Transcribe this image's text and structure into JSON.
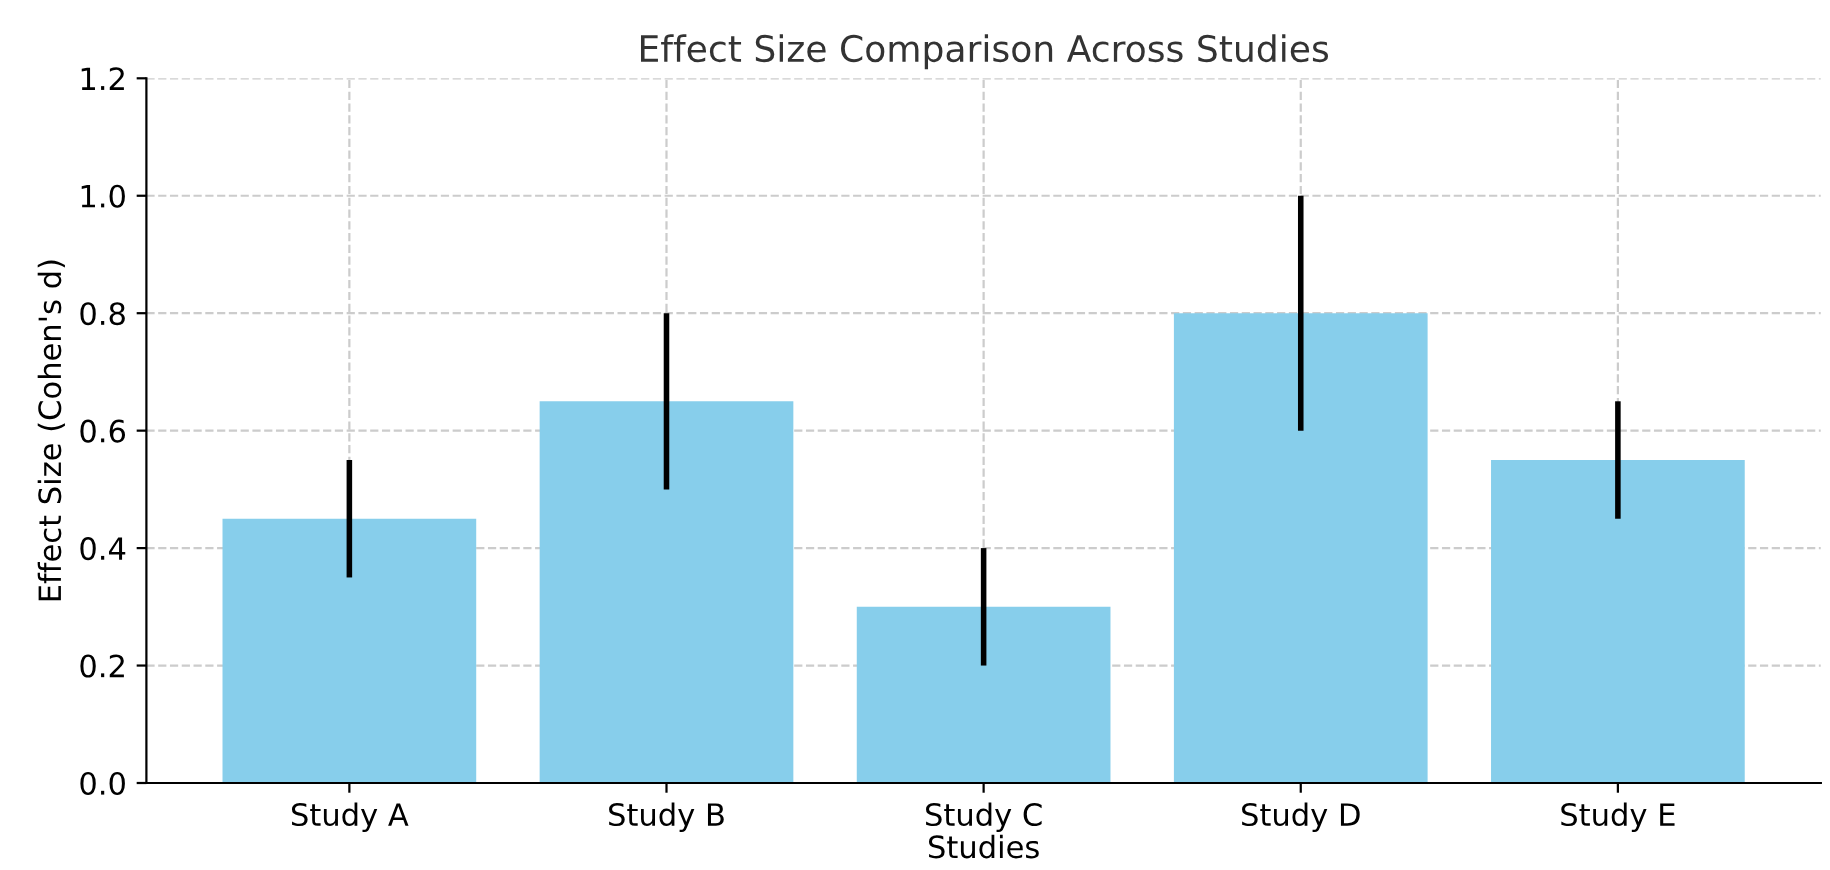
{
  "chart_data": {
    "type": "bar",
    "title": "Effect Size Comparison Across Studies",
    "xlabel": "Studies",
    "ylabel": "Effect Size (Cohen's d)",
    "categories": [
      "Study A",
      "Study B",
      "Study C",
      "Study D",
      "Study E"
    ],
    "values": [
      0.45,
      0.65,
      0.3,
      0.8,
      0.55
    ],
    "errors": [
      0.1,
      0.15,
      0.1,
      0.2,
      0.1
    ],
    "color": "#87ceeb",
    "ylim": [
      0,
      1.2
    ],
    "yticks": [
      {
        "value": 0,
        "label": "0.0"
      },
      0.2,
      0.4,
      0.6,
      0.8,
      {
        "value": 1,
        "label": "1.0"
      },
      1.2
    ],
    "grid": true
  }
}
